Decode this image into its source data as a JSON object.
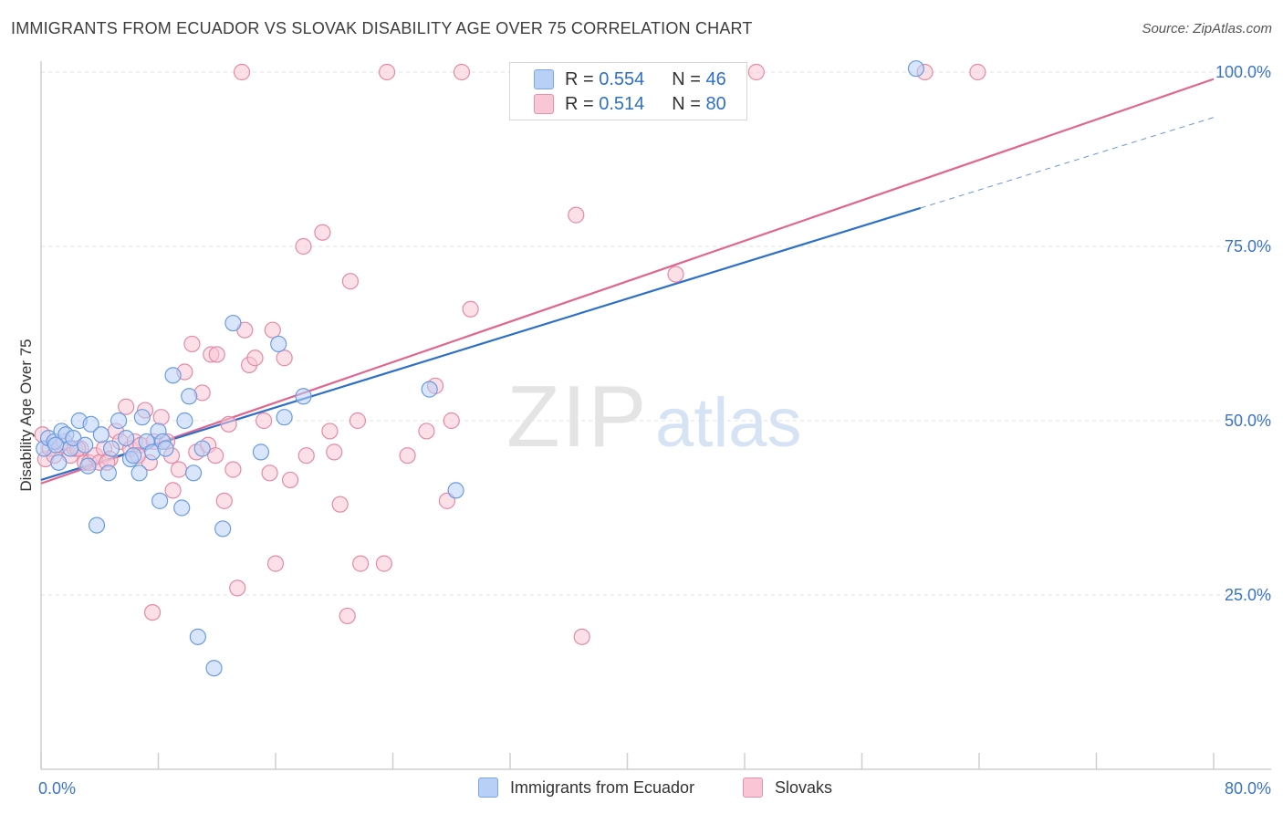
{
  "title": "IMMIGRANTS FROM ECUADOR VS SLOVAK DISABILITY AGE OVER 75 CORRELATION CHART",
  "source": "Source: ZipAtlas.com",
  "watermark": {
    "zip": "ZIP",
    "atlas": "atlas"
  },
  "legend": {
    "r_label": "R =",
    "n_label": "N =",
    "rows": [
      {
        "r": "0.554",
        "n": "46"
      },
      {
        "r": "0.514",
        "n": "80"
      }
    ]
  },
  "bottom_legend": [
    "Immigrants from Ecuador",
    "Slovaks"
  ],
  "colors": {
    "blue_fill": "#b8d0f5",
    "blue_stroke": "#6b9ce0",
    "blue_line": "#2e70c8",
    "pink_fill": "#f8c6d5",
    "pink_stroke": "#e48aa6",
    "pink_line": "#e0668f",
    "tick_label": "#3b74c8",
    "grid": "#e2e2e2"
  },
  "chart_data": {
    "type": "scatter",
    "title": "IMMIGRANTS FROM ECUADOR VS SLOVAK DISABILITY AGE OVER 75 CORRELATION CHART",
    "xlabel": "",
    "ylabel": "Disability Age Over 75",
    "xlim": [
      0,
      80
    ],
    "ylim": [
      0,
      105
    ],
    "x_tick_labels": [
      "0.0%",
      "80.0%"
    ],
    "y_ticks": [
      25,
      50,
      75,
      100
    ],
    "y_tick_labels": [
      "25.0%",
      "50.0%",
      "75.0%",
      "100.0%"
    ],
    "grid": true,
    "legend_position": "top-center",
    "series": [
      {
        "name": "Immigrants from Ecuador",
        "r": 0.554,
        "n": 46,
        "trend": {
          "x": [
            0,
            60
          ],
          "y": [
            41.5,
            80.5
          ],
          "dashed_extension": {
            "x": [
              60,
              80
            ],
            "y": [
              80.5,
              93.5
            ]
          }
        },
        "points": [
          [
            0.2,
            46
          ],
          [
            0.5,
            47.5
          ],
          [
            0.9,
            47
          ],
          [
            1.2,
            44
          ],
          [
            1.4,
            48.5
          ],
          [
            1.7,
            48
          ],
          [
            2.0,
            46
          ],
          [
            2.2,
            47.5
          ],
          [
            2.6,
            50
          ],
          [
            3.0,
            46.5
          ],
          [
            3.4,
            49.5
          ],
          [
            3.8,
            35
          ],
          [
            4.1,
            48
          ],
          [
            4.6,
            42.5
          ],
          [
            4.8,
            46
          ],
          [
            5.3,
            50
          ],
          [
            5.8,
            47.5
          ],
          [
            6.1,
            44.5
          ],
          [
            6.3,
            45
          ],
          [
            6.7,
            42.5
          ],
          [
            6.9,
            50.5
          ],
          [
            7.2,
            47
          ],
          [
            7.6,
            45.5
          ],
          [
            8.0,
            48.5
          ],
          [
            8.1,
            38.5
          ],
          [
            8.3,
            47
          ],
          [
            8.5,
            46
          ],
          [
            9.0,
            56.5
          ],
          [
            9.6,
            37.5
          ],
          [
            9.8,
            50
          ],
          [
            10.1,
            53.5
          ],
          [
            10.4,
            42.5
          ],
          [
            11.0,
            46
          ],
          [
            10.7,
            19
          ],
          [
            11.8,
            14.5
          ],
          [
            12.4,
            34.5
          ],
          [
            13.1,
            64
          ],
          [
            15.0,
            45.5
          ],
          [
            16.2,
            61
          ],
          [
            16.6,
            50.5
          ],
          [
            17.9,
            53.5
          ],
          [
            26.5,
            54.5
          ],
          [
            28.3,
            40
          ],
          [
            59.7,
            100.5
          ],
          [
            1.0,
            46.5
          ],
          [
            3.2,
            43.5
          ]
        ]
      },
      {
        "name": "Slovaks",
        "r": 0.514,
        "n": 80,
        "trend": {
          "x": [
            0,
            80
          ],
          "y": [
            41,
            99
          ]
        },
        "points": [
          [
            0.1,
            48
          ],
          [
            0.3,
            44.5
          ],
          [
            0.6,
            46
          ],
          [
            0.9,
            45
          ],
          [
            1.3,
            46.5
          ],
          [
            1.6,
            47
          ],
          [
            2.0,
            45
          ],
          [
            2.3,
            46
          ],
          [
            2.7,
            46
          ],
          [
            3.0,
            44
          ],
          [
            3.3,
            44
          ],
          [
            3.7,
            45
          ],
          [
            4.0,
            44
          ],
          [
            4.3,
            46
          ],
          [
            4.7,
            44.5
          ],
          [
            5.1,
            48.5
          ],
          [
            5.4,
            47
          ],
          [
            5.8,
            52
          ],
          [
            6.1,
            46
          ],
          [
            6.4,
            47
          ],
          [
            6.8,
            46.5
          ],
          [
            7.1,
            51.5
          ],
          [
            7.4,
            44
          ],
          [
            7.7,
            47
          ],
          [
            8.2,
            50.5
          ],
          [
            8.6,
            47
          ],
          [
            9.0,
            40
          ],
          [
            9.4,
            43
          ],
          [
            9.8,
            57
          ],
          [
            10.3,
            61
          ],
          [
            10.6,
            45.5
          ],
          [
            11.0,
            54
          ],
          [
            11.4,
            46.5
          ],
          [
            11.6,
            59.5
          ],
          [
            12.0,
            59.5
          ],
          [
            12.5,
            38.5
          ],
          [
            12.8,
            49.5
          ],
          [
            13.1,
            43
          ],
          [
            13.4,
            26
          ],
          [
            13.7,
            100
          ],
          [
            13.9,
            63
          ],
          [
            14.2,
            58
          ],
          [
            14.6,
            59
          ],
          [
            15.2,
            50
          ],
          [
            15.6,
            42.5
          ],
          [
            15.8,
            63
          ],
          [
            16.0,
            29.5
          ],
          [
            16.6,
            59
          ],
          [
            17.0,
            41.5
          ],
          [
            17.9,
            75
          ],
          [
            18.1,
            45
          ],
          [
            19.7,
            48.5
          ],
          [
            19.2,
            77
          ],
          [
            20.0,
            45.5
          ],
          [
            20.4,
            38
          ],
          [
            20.9,
            22
          ],
          [
            21.1,
            70
          ],
          [
            21.6,
            50
          ],
          [
            21.8,
            29.5
          ],
          [
            23.4,
            29.5
          ],
          [
            23.6,
            100
          ],
          [
            25.0,
            45
          ],
          [
            26.3,
            48.5
          ],
          [
            26.9,
            55
          ],
          [
            27.7,
            38.5
          ],
          [
            28.0,
            50
          ],
          [
            28.7,
            100
          ],
          [
            29.3,
            66
          ],
          [
            36.5,
            79.5
          ],
          [
            36.9,
            19
          ],
          [
            43.3,
            71
          ],
          [
            48.8,
            100
          ],
          [
            60.3,
            100
          ],
          [
            63.9,
            100
          ],
          [
            7.6,
            22.5
          ],
          [
            8.9,
            45
          ],
          [
            11.9,
            45
          ],
          [
            2.5,
            46
          ],
          [
            4.5,
            44
          ],
          [
            6.6,
            45
          ]
        ]
      }
    ]
  }
}
